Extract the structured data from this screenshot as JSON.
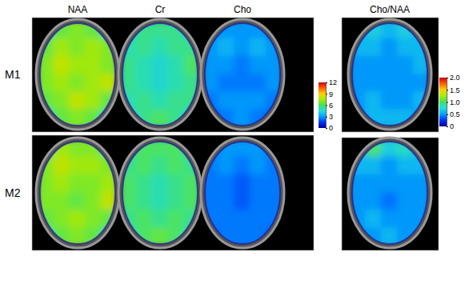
{
  "chart_data": {
    "type": "heatmap",
    "rows": [
      "M1",
      "M2"
    ],
    "columns": [
      "NAA",
      "Cr",
      "Cho",
      "Cho/NAA"
    ],
    "colorbars": [
      {
        "range": [
          0,
          12
        ],
        "ticks": [
          0,
          3,
          6,
          9,
          12
        ]
      },
      {
        "range": [
          0,
          2
        ],
        "ticks": [
          0,
          0.5,
          {
            "value": 1,
            "label": "1.0"
          },
          1.5,
          {
            "value": 2,
            "label": "2.0"
          }
        ]
      }
    ],
    "maps": [
      [
        [
          [
            5,
            6.5,
            7,
            6.5,
            5
          ],
          [
            6.5,
            7.5,
            7,
            7.5,
            7
          ],
          [
            7,
            8,
            7.5,
            7.5,
            7
          ],
          [
            7,
            7.5,
            7,
            7.5,
            8
          ],
          [
            6.5,
            7,
            8,
            7.5,
            6.5
          ],
          [
            5,
            6.5,
            7,
            6.5,
            5
          ]
        ],
        [
          [
            4.5,
            5.5,
            5.5,
            5.5,
            4.5
          ],
          [
            5,
            5.5,
            5,
            5.5,
            5.5
          ],
          [
            5.5,
            5,
            4.5,
            5,
            6
          ],
          [
            5.5,
            5,
            4.5,
            5,
            5.5
          ],
          [
            5,
            5.5,
            5,
            5.5,
            5.5
          ],
          [
            4.5,
            5.5,
            6,
            5.5,
            4.5
          ]
        ],
        [
          [
            2.5,
            3,
            3,
            3,
            2.5
          ],
          [
            3,
            3.5,
            3,
            3.5,
            3
          ],
          [
            3,
            3,
            2.5,
            3,
            3
          ],
          [
            3,
            2.5,
            2.5,
            2.5,
            3
          ],
          [
            2.5,
            3,
            3,
            3,
            2.5
          ],
          [
            2,
            2.5,
            3,
            2.5,
            2
          ]
        ],
        [
          [
            0.6,
            0.7,
            0.6,
            0.7,
            0.6
          ],
          [
            0.6,
            0.6,
            0.5,
            0.6,
            0.6
          ],
          [
            0.5,
            0.5,
            0.5,
            0.5,
            0.6
          ],
          [
            0.5,
            0.5,
            0.5,
            0.5,
            0.5
          ],
          [
            0.5,
            0.6,
            0.5,
            0.5,
            0.6
          ],
          [
            0.5,
            0.6,
            0.6,
            0.6,
            0.5
          ]
        ]
      ],
      [
        [
          [
            5.5,
            7.5,
            7,
            7,
            5.5
          ],
          [
            7,
            8,
            7.5,
            7.5,
            7
          ],
          [
            7,
            7.5,
            7,
            7,
            7.5
          ],
          [
            7,
            7,
            6.5,
            7,
            8
          ],
          [
            6.5,
            7,
            7.5,
            7,
            6.5
          ],
          [
            5,
            6.5,
            7,
            6.5,
            5
          ]
        ],
        [
          [
            5,
            6,
            6,
            6,
            5
          ],
          [
            5.5,
            6,
            5.5,
            6,
            5.5
          ],
          [
            6,
            5.5,
            5,
            5.5,
            6
          ],
          [
            6,
            5.5,
            5,
            5.5,
            6
          ],
          [
            5.5,
            6,
            5.5,
            6,
            5.5
          ],
          [
            5,
            6,
            6.5,
            6,
            5
          ]
        ],
        [
          [
            2.5,
            3,
            3,
            3,
            2.5
          ],
          [
            2.5,
            3,
            2.5,
            3,
            2.5
          ],
          [
            2.5,
            2.5,
            2,
            2.5,
            2.5
          ],
          [
            2.5,
            2.5,
            2,
            2.5,
            2.5
          ],
          [
            2.5,
            2.5,
            2.5,
            2.5,
            2.5
          ],
          [
            2,
            2.5,
            2.5,
            2.5,
            2
          ]
        ],
        [
          [
            0.6,
            1.0,
            0.7,
            0.8,
            0.6
          ],
          [
            0.6,
            0.6,
            0.5,
            0.6,
            0.6
          ],
          [
            0.5,
            0.5,
            0.5,
            0.5,
            0.5
          ],
          [
            0.5,
            0.5,
            0.4,
            0.5,
            0.5
          ],
          [
            0.5,
            0.6,
            0.5,
            0.5,
            0.5
          ],
          [
            0.5,
            0.5,
            0.6,
            0.5,
            0.5
          ]
        ]
      ]
    ]
  }
}
